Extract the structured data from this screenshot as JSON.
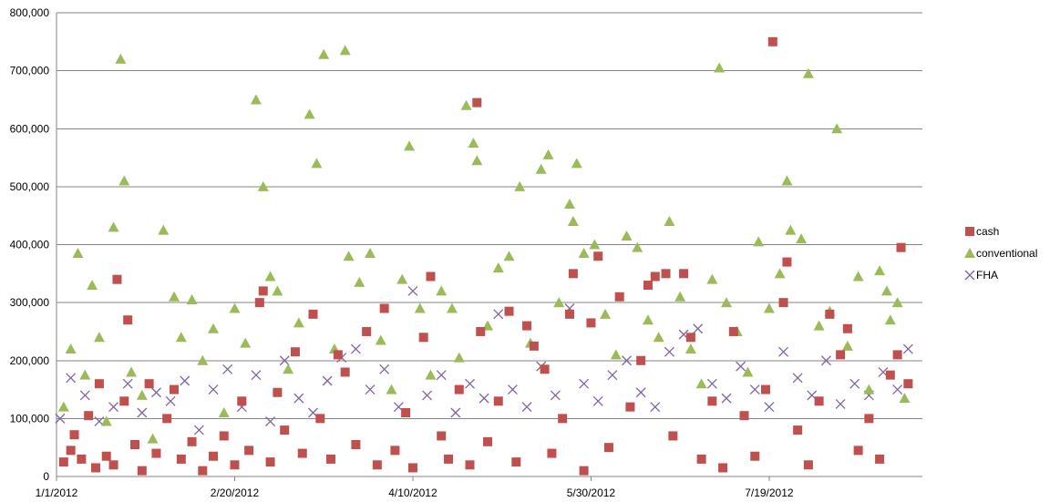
{
  "chart_data": {
    "type": "scatter",
    "title": "",
    "xlabel": "",
    "ylabel": "",
    "ylim": [
      0,
      800000
    ],
    "y_ticks": [
      "800,000",
      "700,000",
      "600,000",
      "500,000",
      "400,000",
      "300,000",
      "200,000",
      "100,000",
      "0"
    ],
    "x_ticks": [
      "1/1/2012",
      "2/20/2012",
      "4/10/2012",
      "5/30/2012",
      "7/19/2012"
    ],
    "xlim": [
      "2012-01-01",
      "2012-08-31"
    ],
    "grid": "horizontal",
    "legend_position": "right",
    "series": [
      {
        "name": "cash",
        "color": "#c0504d",
        "marker": "square",
        "points": [
          [
            "2012-01-03",
            25000
          ],
          [
            "2012-01-05",
            45000
          ],
          [
            "2012-01-06",
            72000
          ],
          [
            "2012-01-08",
            30000
          ],
          [
            "2012-01-10",
            105000
          ],
          [
            "2012-01-12",
            15000
          ],
          [
            "2012-01-13",
            160000
          ],
          [
            "2012-01-15",
            35000
          ],
          [
            "2012-01-17",
            20000
          ],
          [
            "2012-01-18",
            340000
          ],
          [
            "2012-01-20",
            130000
          ],
          [
            "2012-01-21",
            270000
          ],
          [
            "2012-01-23",
            55000
          ],
          [
            "2012-01-25",
            10000
          ],
          [
            "2012-01-27",
            160000
          ],
          [
            "2012-01-29",
            40000
          ],
          [
            "2012-02-01",
            100000
          ],
          [
            "2012-02-03",
            150000
          ],
          [
            "2012-02-05",
            30000
          ],
          [
            "2012-02-08",
            60000
          ],
          [
            "2012-02-11",
            10000
          ],
          [
            "2012-02-14",
            35000
          ],
          [
            "2012-02-17",
            70000
          ],
          [
            "2012-02-20",
            20000
          ],
          [
            "2012-02-22",
            130000
          ],
          [
            "2012-02-24",
            45000
          ],
          [
            "2012-02-27",
            300000
          ],
          [
            "2012-02-28",
            320000
          ],
          [
            "2012-03-01",
            25000
          ],
          [
            "2012-03-03",
            145000
          ],
          [
            "2012-03-05",
            80000
          ],
          [
            "2012-03-08",
            215000
          ],
          [
            "2012-03-10",
            40000
          ],
          [
            "2012-03-13",
            280000
          ],
          [
            "2012-03-15",
            100000
          ],
          [
            "2012-03-18",
            30000
          ],
          [
            "2012-03-20",
            210000
          ],
          [
            "2012-03-22",
            180000
          ],
          [
            "2012-03-25",
            55000
          ],
          [
            "2012-03-28",
            250000
          ],
          [
            "2012-03-31",
            20000
          ],
          [
            "2012-04-02",
            290000
          ],
          [
            "2012-04-05",
            45000
          ],
          [
            "2012-04-08",
            110000
          ],
          [
            "2012-04-10",
            15000
          ],
          [
            "2012-04-13",
            240000
          ],
          [
            "2012-04-15",
            345000
          ],
          [
            "2012-04-18",
            70000
          ],
          [
            "2012-04-20",
            30000
          ],
          [
            "2012-04-23",
            150000
          ],
          [
            "2012-04-26",
            20000
          ],
          [
            "2012-04-28",
            645000
          ],
          [
            "2012-04-29",
            250000
          ],
          [
            "2012-05-01",
            60000
          ],
          [
            "2012-05-04",
            130000
          ],
          [
            "2012-05-07",
            285000
          ],
          [
            "2012-05-09",
            25000
          ],
          [
            "2012-05-12",
            260000
          ],
          [
            "2012-05-14",
            225000
          ],
          [
            "2012-05-17",
            185000
          ],
          [
            "2012-05-19",
            40000
          ],
          [
            "2012-05-22",
            100000
          ],
          [
            "2012-05-24",
            280000
          ],
          [
            "2012-05-25",
            350000
          ],
          [
            "2012-05-28",
            10000
          ],
          [
            "2012-05-30",
            265000
          ],
          [
            "2012-06-01",
            380000
          ],
          [
            "2012-06-04",
            50000
          ],
          [
            "2012-06-07",
            310000
          ],
          [
            "2012-06-10",
            120000
          ],
          [
            "2012-06-13",
            200000
          ],
          [
            "2012-06-15",
            330000
          ],
          [
            "2012-06-17",
            345000
          ],
          [
            "2012-06-20",
            350000
          ],
          [
            "2012-06-22",
            70000
          ],
          [
            "2012-06-25",
            350000
          ],
          [
            "2012-06-27",
            240000
          ],
          [
            "2012-06-30",
            30000
          ],
          [
            "2012-07-03",
            130000
          ],
          [
            "2012-07-06",
            15000
          ],
          [
            "2012-07-09",
            250000
          ],
          [
            "2012-07-12",
            105000
          ],
          [
            "2012-07-15",
            35000
          ],
          [
            "2012-07-18",
            150000
          ],
          [
            "2012-07-20",
            750000
          ],
          [
            "2012-07-23",
            300000
          ],
          [
            "2012-07-24",
            370000
          ],
          [
            "2012-07-27",
            80000
          ],
          [
            "2012-07-30",
            20000
          ],
          [
            "2012-08-02",
            130000
          ],
          [
            "2012-08-05",
            280000
          ],
          [
            "2012-08-08",
            210000
          ],
          [
            "2012-08-10",
            255000
          ],
          [
            "2012-08-13",
            45000
          ],
          [
            "2012-08-16",
            100000
          ],
          [
            "2012-08-19",
            30000
          ],
          [
            "2012-08-22",
            175000
          ],
          [
            "2012-08-24",
            210000
          ],
          [
            "2012-08-25",
            395000
          ],
          [
            "2012-08-27",
            160000
          ]
        ]
      },
      {
        "name": "conventional",
        "color": "#9bbb59",
        "marker": "triangle",
        "points": [
          [
            "2012-01-03",
            120000
          ],
          [
            "2012-01-05",
            220000
          ],
          [
            "2012-01-07",
            385000
          ],
          [
            "2012-01-09",
            175000
          ],
          [
            "2012-01-11",
            330000
          ],
          [
            "2012-01-13",
            240000
          ],
          [
            "2012-01-15",
            95000
          ],
          [
            "2012-01-17",
            430000
          ],
          [
            "2012-01-19",
            720000
          ],
          [
            "2012-01-20",
            510000
          ],
          [
            "2012-01-22",
            180000
          ],
          [
            "2012-01-25",
            140000
          ],
          [
            "2012-01-28",
            65000
          ],
          [
            "2012-01-31",
            425000
          ],
          [
            "2012-02-03",
            310000
          ],
          [
            "2012-02-05",
            240000
          ],
          [
            "2012-02-08",
            305000
          ],
          [
            "2012-02-11",
            200000
          ],
          [
            "2012-02-14",
            255000
          ],
          [
            "2012-02-17",
            110000
          ],
          [
            "2012-02-20",
            290000
          ],
          [
            "2012-02-23",
            230000
          ],
          [
            "2012-02-26",
            650000
          ],
          [
            "2012-02-28",
            500000
          ],
          [
            "2012-03-01",
            345000
          ],
          [
            "2012-03-03",
            320000
          ],
          [
            "2012-03-06",
            185000
          ],
          [
            "2012-03-09",
            265000
          ],
          [
            "2012-03-12",
            625000
          ],
          [
            "2012-03-14",
            540000
          ],
          [
            "2012-03-16",
            728000
          ],
          [
            "2012-03-19",
            220000
          ],
          [
            "2012-03-22",
            735000
          ],
          [
            "2012-03-23",
            380000
          ],
          [
            "2012-03-26",
            335000
          ],
          [
            "2012-03-29",
            385000
          ],
          [
            "2012-04-01",
            235000
          ],
          [
            "2012-04-04",
            150000
          ],
          [
            "2012-04-07",
            340000
          ],
          [
            "2012-04-09",
            570000
          ],
          [
            "2012-04-12",
            290000
          ],
          [
            "2012-04-15",
            175000
          ],
          [
            "2012-04-18",
            320000
          ],
          [
            "2012-04-21",
            290000
          ],
          [
            "2012-04-23",
            205000
          ],
          [
            "2012-04-25",
            640000
          ],
          [
            "2012-04-27",
            575000
          ],
          [
            "2012-04-28",
            545000
          ],
          [
            "2012-05-01",
            260000
          ],
          [
            "2012-05-04",
            360000
          ],
          [
            "2012-05-07",
            380000
          ],
          [
            "2012-05-10",
            500000
          ],
          [
            "2012-05-13",
            230000
          ],
          [
            "2012-05-16",
            530000
          ],
          [
            "2012-05-18",
            555000
          ],
          [
            "2012-05-21",
            300000
          ],
          [
            "2012-05-24",
            470000
          ],
          [
            "2012-05-25",
            440000
          ],
          [
            "2012-05-26",
            540000
          ],
          [
            "2012-05-28",
            385000
          ],
          [
            "2012-05-31",
            400000
          ],
          [
            "2012-06-03",
            280000
          ],
          [
            "2012-06-06",
            210000
          ],
          [
            "2012-06-09",
            415000
          ],
          [
            "2012-06-12",
            395000
          ],
          [
            "2012-06-15",
            270000
          ],
          [
            "2012-06-18",
            240000
          ],
          [
            "2012-06-21",
            440000
          ],
          [
            "2012-06-24",
            310000
          ],
          [
            "2012-06-27",
            220000
          ],
          [
            "2012-06-30",
            160000
          ],
          [
            "2012-07-03",
            340000
          ],
          [
            "2012-07-05",
            705000
          ],
          [
            "2012-07-07",
            300000
          ],
          [
            "2012-07-10",
            250000
          ],
          [
            "2012-07-13",
            180000
          ],
          [
            "2012-07-16",
            405000
          ],
          [
            "2012-07-19",
            290000
          ],
          [
            "2012-07-22",
            350000
          ],
          [
            "2012-07-24",
            510000
          ],
          [
            "2012-07-25",
            425000
          ],
          [
            "2012-07-28",
            410000
          ],
          [
            "2012-07-30",
            695000
          ],
          [
            "2012-08-02",
            260000
          ],
          [
            "2012-08-05",
            285000
          ],
          [
            "2012-08-07",
            600000
          ],
          [
            "2012-08-10",
            225000
          ],
          [
            "2012-08-13",
            345000
          ],
          [
            "2012-08-16",
            150000
          ],
          [
            "2012-08-19",
            355000
          ],
          [
            "2012-08-21",
            320000
          ],
          [
            "2012-08-22",
            270000
          ],
          [
            "2012-08-24",
            300000
          ],
          [
            "2012-08-26",
            135000
          ]
        ]
      },
      {
        "name": "FHA",
        "color": "#8064a2",
        "marker": "x",
        "points": [
          [
            "2012-01-02",
            100000
          ],
          [
            "2012-01-05",
            170000
          ],
          [
            "2012-01-09",
            140000
          ],
          [
            "2012-01-13",
            95000
          ],
          [
            "2012-01-17",
            120000
          ],
          [
            "2012-01-21",
            160000
          ],
          [
            "2012-01-25",
            110000
          ],
          [
            "2012-01-29",
            145000
          ],
          [
            "2012-02-02",
            130000
          ],
          [
            "2012-02-06",
            165000
          ],
          [
            "2012-02-10",
            80000
          ],
          [
            "2012-02-14",
            150000
          ],
          [
            "2012-02-18",
            185000
          ],
          [
            "2012-02-22",
            120000
          ],
          [
            "2012-02-26",
            175000
          ],
          [
            "2012-03-01",
            95000
          ],
          [
            "2012-03-05",
            200000
          ],
          [
            "2012-03-09",
            135000
          ],
          [
            "2012-03-13",
            110000
          ],
          [
            "2012-03-17",
            165000
          ],
          [
            "2012-03-21",
            205000
          ],
          [
            "2012-03-25",
            220000
          ],
          [
            "2012-03-29",
            150000
          ],
          [
            "2012-04-02",
            185000
          ],
          [
            "2012-04-06",
            120000
          ],
          [
            "2012-04-10",
            320000
          ],
          [
            "2012-04-14",
            140000
          ],
          [
            "2012-04-18",
            175000
          ],
          [
            "2012-04-22",
            110000
          ],
          [
            "2012-04-26",
            160000
          ],
          [
            "2012-04-30",
            135000
          ],
          [
            "2012-05-04",
            280000
          ],
          [
            "2012-05-08",
            150000
          ],
          [
            "2012-05-12",
            120000
          ],
          [
            "2012-05-16",
            190000
          ],
          [
            "2012-05-20",
            140000
          ],
          [
            "2012-05-24",
            290000
          ],
          [
            "2012-05-28",
            160000
          ],
          [
            "2012-06-01",
            130000
          ],
          [
            "2012-06-05",
            175000
          ],
          [
            "2012-06-09",
            200000
          ],
          [
            "2012-06-13",
            145000
          ],
          [
            "2012-06-17",
            120000
          ],
          [
            "2012-06-21",
            215000
          ],
          [
            "2012-06-25",
            245000
          ],
          [
            "2012-06-29",
            255000
          ],
          [
            "2012-07-03",
            160000
          ],
          [
            "2012-07-07",
            135000
          ],
          [
            "2012-07-11",
            190000
          ],
          [
            "2012-07-15",
            150000
          ],
          [
            "2012-07-19",
            120000
          ],
          [
            "2012-07-23",
            215000
          ],
          [
            "2012-07-27",
            170000
          ],
          [
            "2012-07-31",
            140000
          ],
          [
            "2012-08-04",
            200000
          ],
          [
            "2012-08-08",
            125000
          ],
          [
            "2012-08-12",
            160000
          ],
          [
            "2012-08-16",
            140000
          ],
          [
            "2012-08-20",
            180000
          ],
          [
            "2012-08-24",
            150000
          ],
          [
            "2012-08-27",
            220000
          ]
        ]
      }
    ]
  }
}
